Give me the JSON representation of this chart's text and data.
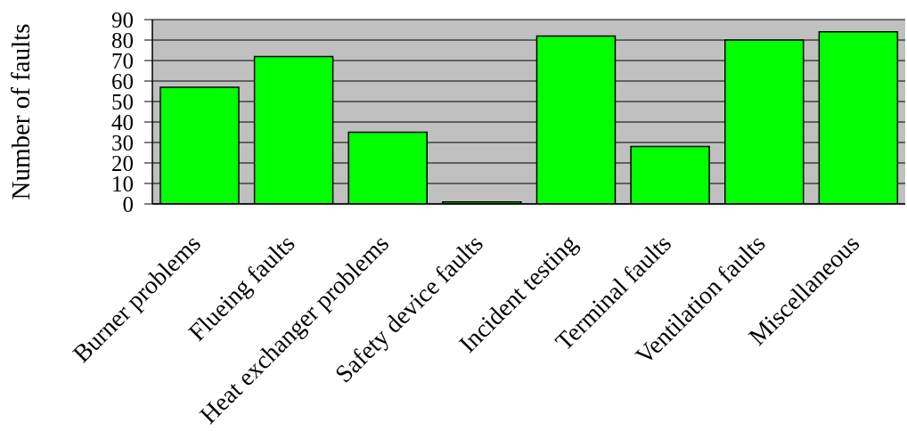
{
  "chart_data": {
    "type": "bar",
    "ylabel": "Number of faults",
    "categories": [
      "Burner problems",
      "Flueing faults",
      "Heat exchanger problems",
      "Safety device faults",
      "Incident testing",
      "Terminal faults",
      "Ventilation faults",
      "Miscellaneous"
    ],
    "values": [
      57,
      72,
      35,
      1,
      82,
      28,
      80,
      84
    ],
    "color": "#00ff00",
    "ylim": [
      0,
      90
    ],
    "yticks": [
      0,
      10,
      20,
      30,
      40,
      50,
      60,
      70,
      80,
      90
    ],
    "grid": "y"
  }
}
